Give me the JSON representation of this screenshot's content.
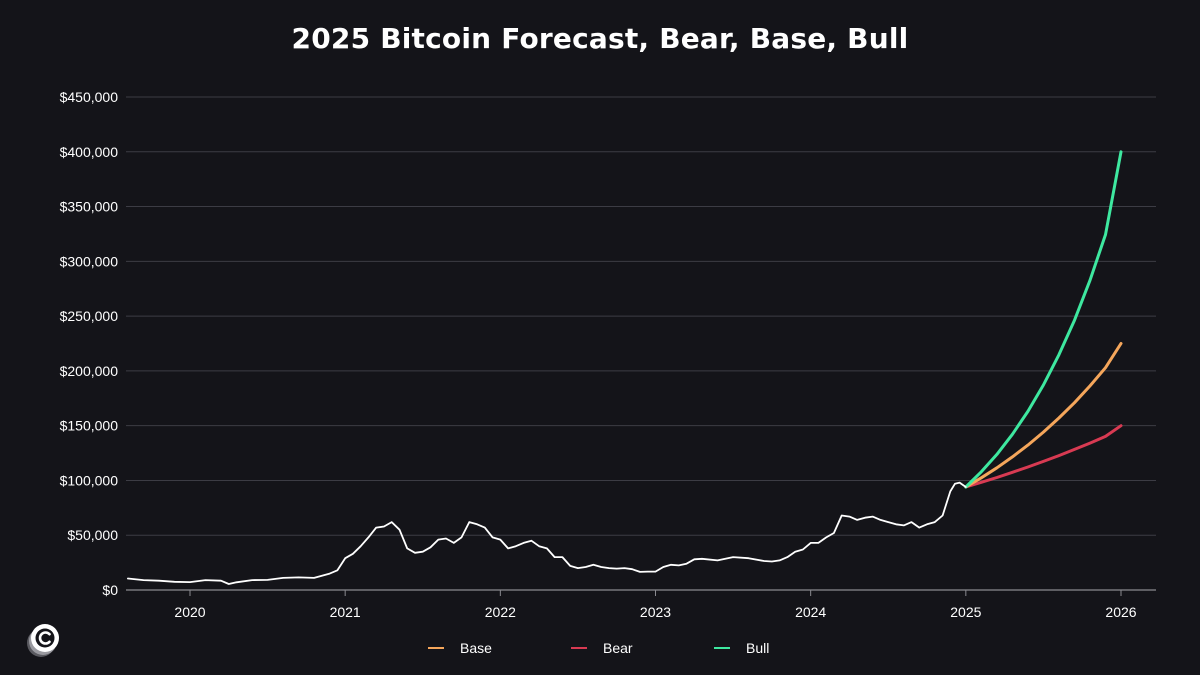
{
  "chart_data": {
    "type": "line",
    "title": "2025 Bitcoin Forecast, Bear, Base, Bull",
    "xlabel": "",
    "ylabel": "",
    "x_ticks": [
      "2020",
      "2021",
      "2022",
      "2023",
      "2024",
      "2025",
      "2026"
    ],
    "x_range": [
      2019.6,
      2026.25
    ],
    "y_ticks": [
      "$0",
      "$50,000",
      "$100,000",
      "$150,000",
      "$200,000",
      "$250,000",
      "$300,000",
      "$350,000",
      "$400,000",
      "$450,000"
    ],
    "ylim": [
      0,
      450000
    ],
    "grid": "horizontal",
    "legend_position": "bottom",
    "historical": {
      "color": "#ffffff",
      "x": [
        2019.6,
        2019.7,
        2019.8,
        2019.9,
        2020.0,
        2020.1,
        2020.2,
        2020.25,
        2020.3,
        2020.4,
        2020.5,
        2020.6,
        2020.7,
        2020.8,
        2020.9,
        2020.95,
        2021.0,
        2021.05,
        2021.1,
        2021.15,
        2021.2,
        2021.25,
        2021.3,
        2021.35,
        2021.4,
        2021.45,
        2021.5,
        2021.55,
        2021.6,
        2021.65,
        2021.7,
        2021.75,
        2021.8,
        2021.85,
        2021.9,
        2021.95,
        2022.0,
        2022.05,
        2022.1,
        2022.15,
        2022.2,
        2022.25,
        2022.3,
        2022.35,
        2022.4,
        2022.45,
        2022.5,
        2022.55,
        2022.6,
        2022.65,
        2022.7,
        2022.75,
        2022.8,
        2022.85,
        2022.9,
        2022.95,
        2023.0,
        2023.05,
        2023.1,
        2023.15,
        2023.2,
        2023.25,
        2023.3,
        2023.4,
        2023.5,
        2023.6,
        2023.7,
        2023.75,
        2023.8,
        2023.85,
        2023.9,
        2023.95,
        2024.0,
        2024.05,
        2024.1,
        2024.15,
        2024.2,
        2024.25,
        2024.3,
        2024.35,
        2024.4,
        2024.45,
        2024.5,
        2024.55,
        2024.6,
        2024.65,
        2024.7,
        2024.75,
        2024.8,
        2024.85,
        2024.9,
        2024.93,
        2024.96,
        2025.0
      ],
      "values": [
        10500,
        9000,
        8500,
        7500,
        7200,
        9000,
        8500,
        5500,
        7000,
        9000,
        9200,
        11000,
        11500,
        11000,
        15000,
        18000,
        29000,
        33000,
        40000,
        48000,
        57000,
        58000,
        62000,
        55000,
        38000,
        34000,
        35000,
        39000,
        46000,
        47000,
        43000,
        48000,
        62000,
        60000,
        57000,
        48000,
        46000,
        38000,
        40000,
        43000,
        45000,
        40000,
        38000,
        30000,
        30000,
        22000,
        20000,
        21000,
        23000,
        21000,
        20000,
        19500,
        20000,
        19000,
        16500,
        16800,
        16800,
        21000,
        23000,
        22500,
        24000,
        28000,
        28500,
        27000,
        30000,
        29000,
        26500,
        26000,
        27000,
        30000,
        35000,
        37000,
        43000,
        43000,
        48000,
        52000,
        68000,
        67000,
        64000,
        66000,
        67000,
        64000,
        62000,
        60000,
        59000,
        62000,
        57000,
        60000,
        62000,
        68000,
        90000,
        97000,
        98000,
        94000
      ]
    },
    "series": [
      {
        "name": "Base",
        "color": "#f5a65b",
        "x": [
          2025.0,
          2025.1,
          2025.2,
          2025.3,
          2025.4,
          2025.5,
          2025.6,
          2025.7,
          2025.8,
          2025.9,
          2026.0
        ],
        "values": [
          94000,
          102400,
          111500,
          121500,
          132300,
          144100,
          157000,
          171000,
          186300,
          202900,
          225000
        ]
      },
      {
        "name": "Bear",
        "color": "#d83a52",
        "x": [
          2025.0,
          2025.1,
          2025.2,
          2025.3,
          2025.4,
          2025.5,
          2025.6,
          2025.7,
          2025.8,
          2025.9,
          2026.0
        ],
        "values": [
          94000,
          98300,
          102700,
          107400,
          112300,
          117400,
          122700,
          128300,
          134100,
          140200,
          150000
        ]
      },
      {
        "name": "Bull",
        "color": "#3ee8a0",
        "x": [
          2025.0,
          2025.1,
          2025.2,
          2025.3,
          2025.4,
          2025.5,
          2025.6,
          2025.7,
          2025.8,
          2025.9,
          2026.0
        ],
        "values": [
          94000,
          107900,
          123800,
          142100,
          163000,
          187100,
          214700,
          246300,
          282700,
          324400,
          400000
        ]
      }
    ]
  },
  "logo_name": "c-logo-icon"
}
